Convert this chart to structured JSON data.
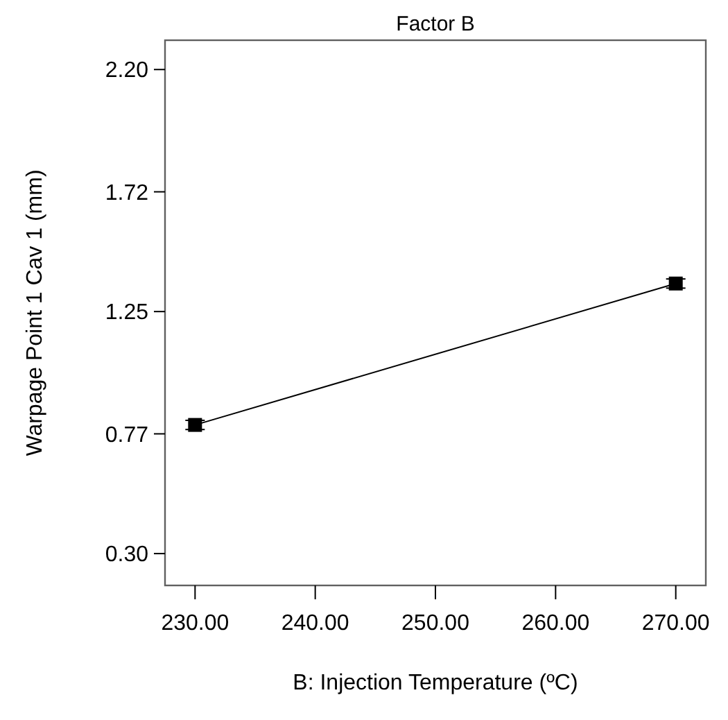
{
  "chart_data": {
    "type": "line",
    "title": "Factor B",
    "xlabel": "B: Injection Temperature (ºC)",
    "ylabel": "Warpage Point 1 Cav 1 (mm)",
    "x": [
      230,
      270
    ],
    "series": [
      {
        "color": "#000000",
        "values": [
          0.805,
          1.36
        ],
        "errors": [
          0.018,
          0.018
        ]
      }
    ],
    "marker": "square",
    "line_style": "solid",
    "xlim": [
      227.5,
      272.5
    ],
    "xticks": [
      {
        "value": 230,
        "label": "230.00"
      },
      {
        "value": 240,
        "label": "240.00"
      },
      {
        "value": 250,
        "label": "250.00"
      },
      {
        "value": 260,
        "label": "260.00"
      },
      {
        "value": 270,
        "label": "270.00"
      }
    ],
    "ylim": [
      0.175,
      2.315
    ],
    "yticks": [
      {
        "value": 0.3,
        "label": "0.30"
      },
      {
        "value": 0.77,
        "label": "0.77"
      },
      {
        "value": 1.25,
        "label": "1.25"
      },
      {
        "value": 1.72,
        "label": "1.72"
      },
      {
        "value": 2.2,
        "label": "2.20"
      }
    ]
  }
}
